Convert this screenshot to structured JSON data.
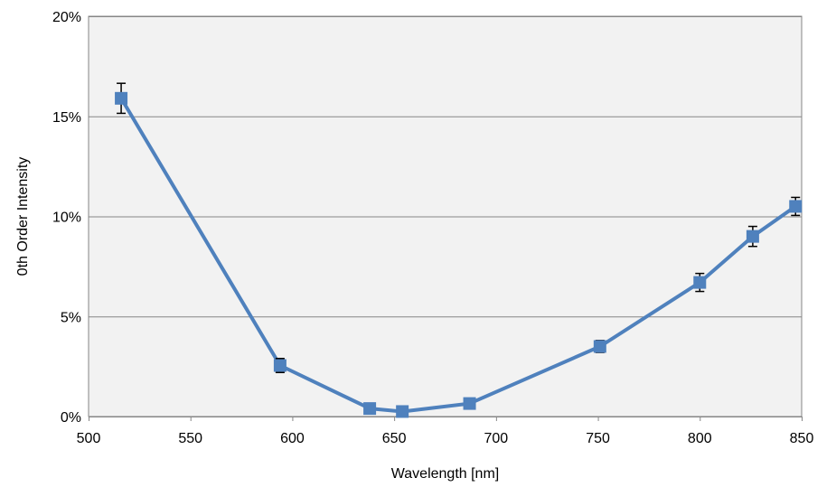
{
  "chart_data": {
    "type": "line",
    "title": "",
    "xlabel": "Wavelength [nm]",
    "ylabel": "0th Order Intensity",
    "xlim": [
      500,
      850
    ],
    "ylim": [
      0,
      20
    ],
    "x_ticks": [
      500,
      550,
      600,
      650,
      700,
      750,
      800,
      850
    ],
    "x_tick_labels": [
      "500",
      "550",
      "600",
      "650",
      "700",
      "750",
      "800",
      "850"
    ],
    "y_ticks": [
      0,
      5,
      10,
      15,
      20
    ],
    "y_tick_labels": [
      "0%",
      "5%",
      "10%",
      "15%",
      "20%"
    ],
    "y_unit": "%",
    "grid": "horizontal",
    "legend": "none",
    "series": [
      {
        "color": "#4f81bd",
        "marker": "square",
        "x": [
          516,
          594,
          638,
          654,
          687,
          751,
          800,
          826,
          847
        ],
        "y": [
          15.9,
          2.55,
          0.4,
          0.25,
          0.65,
          3.5,
          6.7,
          9.0,
          10.5
        ],
        "error": [
          0.75,
          0.35,
          0.1,
          0.08,
          0.12,
          0.3,
          0.45,
          0.5,
          0.45
        ]
      }
    ],
    "colors": {
      "plot_background": "#f2f2f2",
      "gridline": "#868686",
      "frame": "#868686",
      "error_bar": "#000000"
    }
  }
}
